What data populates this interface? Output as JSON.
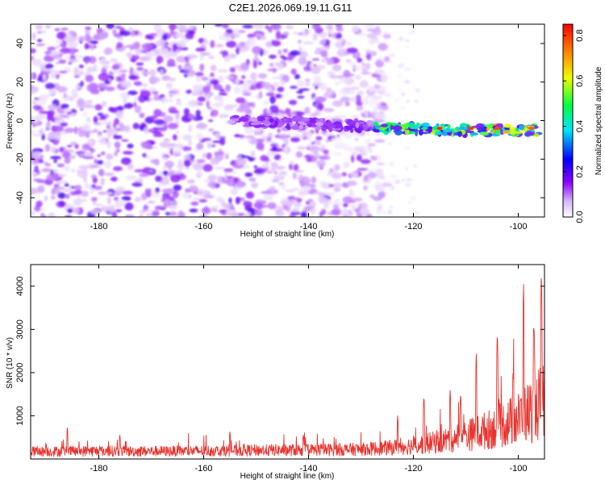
{
  "title": "C2E1.2026.069.19.11.G11",
  "chart_data": [
    {
      "type": "heatmap",
      "xlabel": "Height of straight line (km)",
      "ylabel": "Frequency (Hz)",
      "xlim": [
        -193,
        -95
      ],
      "ylim": [
        -50,
        50
      ],
      "xticks": [
        -180,
        -160,
        -140,
        -120,
        -100
      ],
      "yticks": [
        -40,
        -20,
        0,
        20,
        40
      ],
      "colorbar": {
        "label": "Normalized spectral amplitude",
        "range": [
          0,
          0.85
        ],
        "ticks": [
          0.0,
          0.2,
          0.4,
          0.6,
          0.8
        ],
        "tick_labels": [
          "0.0",
          "0.2",
          "0.4",
          "0.6",
          "0.8"
        ],
        "colors": [
          "#ffffff",
          "#8a00ff",
          "#0000ff",
          "#00e5ff",
          "#00ff40",
          "#f0ff00",
          "#ff8000",
          "#ff0000"
        ]
      },
      "noise_region_end": -127,
      "signal_band": {
        "start": -155,
        "end": -96,
        "freq_start": 0,
        "freq_end": -5,
        "peak_amplitude": 0.8
      }
    },
    {
      "type": "line",
      "xlabel": "Height of straight line (km)",
      "ylabel": "SNR (10 * v/v)",
      "xlim": [
        -193,
        -95
      ],
      "ylim": [
        0,
        4500
      ],
      "xticks": [
        -180,
        -160,
        -140,
        -120,
        -100
      ],
      "yticks": [
        1000,
        2000,
        3000,
        4000
      ],
      "color": "#e8342f",
      "baseline_points": [
        [
          -193,
          220
        ],
        [
          -180,
          240
        ],
        [
          -170,
          230
        ],
        [
          -160,
          240
        ],
        [
          -150,
          260
        ],
        [
          -140,
          270
        ],
        [
          -130,
          290
        ],
        [
          -125,
          330
        ],
        [
          -120,
          400
        ],
        [
          -115,
          520
        ],
        [
          -110,
          700
        ],
        [
          -105,
          900
        ],
        [
          -100,
          1200
        ],
        [
          -97,
          1500
        ],
        [
          -95,
          1800
        ]
      ],
      "peaks": [
        [
          -186,
          720
        ],
        [
          -176,
          560
        ],
        [
          -155,
          640
        ],
        [
          -141,
          560
        ],
        [
          -123,
          1000
        ],
        [
          -118,
          1480
        ],
        [
          -113,
          1620
        ],
        [
          -111,
          1550
        ],
        [
          -108,
          2530
        ],
        [
          -104,
          2990
        ],
        [
          -101,
          2060
        ],
        [
          -99,
          4120
        ],
        [
          -97,
          3200
        ],
        [
          -95.6,
          4450
        ]
      ]
    }
  ]
}
